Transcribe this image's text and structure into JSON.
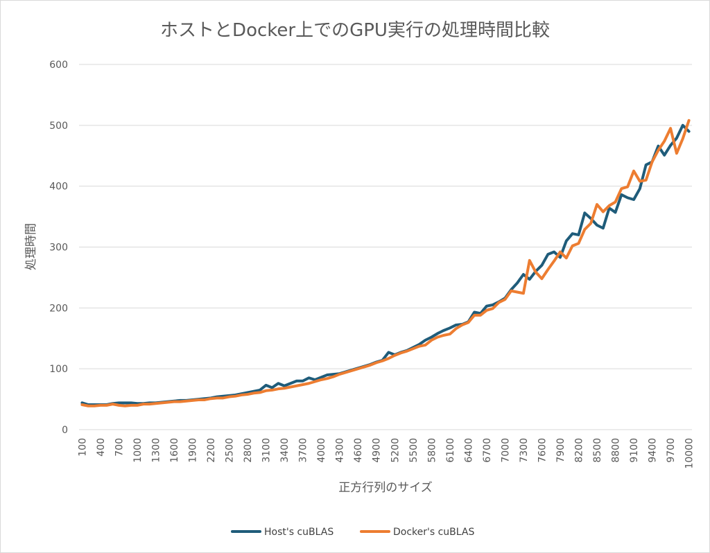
{
  "chart_data": {
    "type": "line",
    "title": "ホストとDocker上でのGPU実行の処理時間比較",
    "xlabel": "正方行列のサイズ",
    "ylabel": "処理時間",
    "ylim": [
      0,
      600
    ],
    "yticks": [
      0,
      100,
      200,
      300,
      400,
      500,
      600
    ],
    "grid": true,
    "legend_position": "bottom",
    "x": [
      100,
      200,
      300,
      400,
      500,
      600,
      700,
      800,
      900,
      1000,
      1100,
      1200,
      1300,
      1400,
      1500,
      1600,
      1700,
      1800,
      1900,
      2000,
      2100,
      2200,
      2300,
      2400,
      2500,
      2600,
      2700,
      2800,
      2900,
      3000,
      3100,
      3200,
      3300,
      3400,
      3500,
      3600,
      3700,
      3800,
      3900,
      4000,
      4100,
      4200,
      4300,
      4400,
      4500,
      4600,
      4700,
      4800,
      4900,
      5000,
      5100,
      5200,
      5300,
      5400,
      5500,
      5600,
      5700,
      5800,
      5900,
      6000,
      6100,
      6200,
      6300,
      6400,
      6500,
      6600,
      6700,
      6800,
      6900,
      7000,
      7100,
      7200,
      7300,
      7400,
      7500,
      7600,
      7700,
      7800,
      7900,
      8000,
      8100,
      8200,
      8300,
      8400,
      8500,
      8600,
      8700,
      8800,
      8900,
      9000,
      9100,
      9200,
      9300,
      9400,
      9500,
      9600,
      9700,
      9800,
      9900,
      10000
    ],
    "xtick_labels": [
      "100",
      "400",
      "700",
      "1000",
      "1300",
      "1600",
      "1900",
      "2200",
      "2500",
      "2800",
      "3100",
      "3400",
      "3700",
      "4000",
      "4300",
      "4600",
      "4900",
      "5200",
      "5500",
      "5800",
      "6100",
      "6400",
      "6700",
      "7000",
      "7300",
      "7600",
      "7900",
      "8200",
      "8500",
      "8800",
      "9100",
      "9400",
      "9700",
      "10000"
    ],
    "series": [
      {
        "name": "Host's cuBLAS",
        "color": "#1f5c7a",
        "values": [
          44,
          41,
          41,
          41,
          41,
          43,
          44,
          44,
          44,
          43,
          43,
          44,
          44,
          45,
          46,
          47,
          48,
          48,
          49,
          50,
          51,
          52,
          54,
          55,
          56,
          57,
          59,
          61,
          63,
          65,
          73,
          69,
          76,
          72,
          76,
          80,
          80,
          85,
          82,
          86,
          90,
          91,
          92,
          95,
          98,
          101,
          104,
          107,
          111,
          114,
          127,
          123,
          127,
          130,
          135,
          140,
          147,
          152,
          158,
          163,
          167,
          172,
          173,
          177,
          193,
          191,
          203,
          205,
          210,
          216,
          230,
          241,
          255,
          247,
          260,
          270,
          288,
          292,
          283,
          310,
          322,
          320,
          356,
          347,
          336,
          331,
          364,
          357,
          386,
          381,
          378,
          396,
          435,
          440,
          466,
          451,
          467,
          479,
          500,
          490
        ]
      },
      {
        "name": "Docker's cuBLAS",
        "color": "#ed7d31",
        "values": [
          41,
          39,
          39,
          40,
          40,
          42,
          40,
          39,
          40,
          40,
          42,
          42,
          43,
          44,
          45,
          46,
          46,
          47,
          48,
          49,
          49,
          51,
          52,
          52,
          54,
          55,
          57,
          58,
          60,
          61,
          64,
          65,
          67,
          68,
          70,
          72,
          74,
          76,
          79,
          82,
          84,
          87,
          91,
          94,
          97,
          100,
          103,
          106,
          110,
          113,
          117,
          122,
          126,
          129,
          133,
          137,
          139,
          147,
          152,
          155,
          157,
          166,
          172,
          176,
          188,
          188,
          196,
          199,
          209,
          214,
          228,
          226,
          224,
          278,
          259,
          248,
          263,
          277,
          292,
          282,
          302,
          306,
          329,
          339,
          370,
          358,
          368,
          374,
          396,
          399,
          425,
          408,
          410,
          440,
          459,
          474,
          495,
          454,
          478,
          508
        ]
      }
    ]
  }
}
